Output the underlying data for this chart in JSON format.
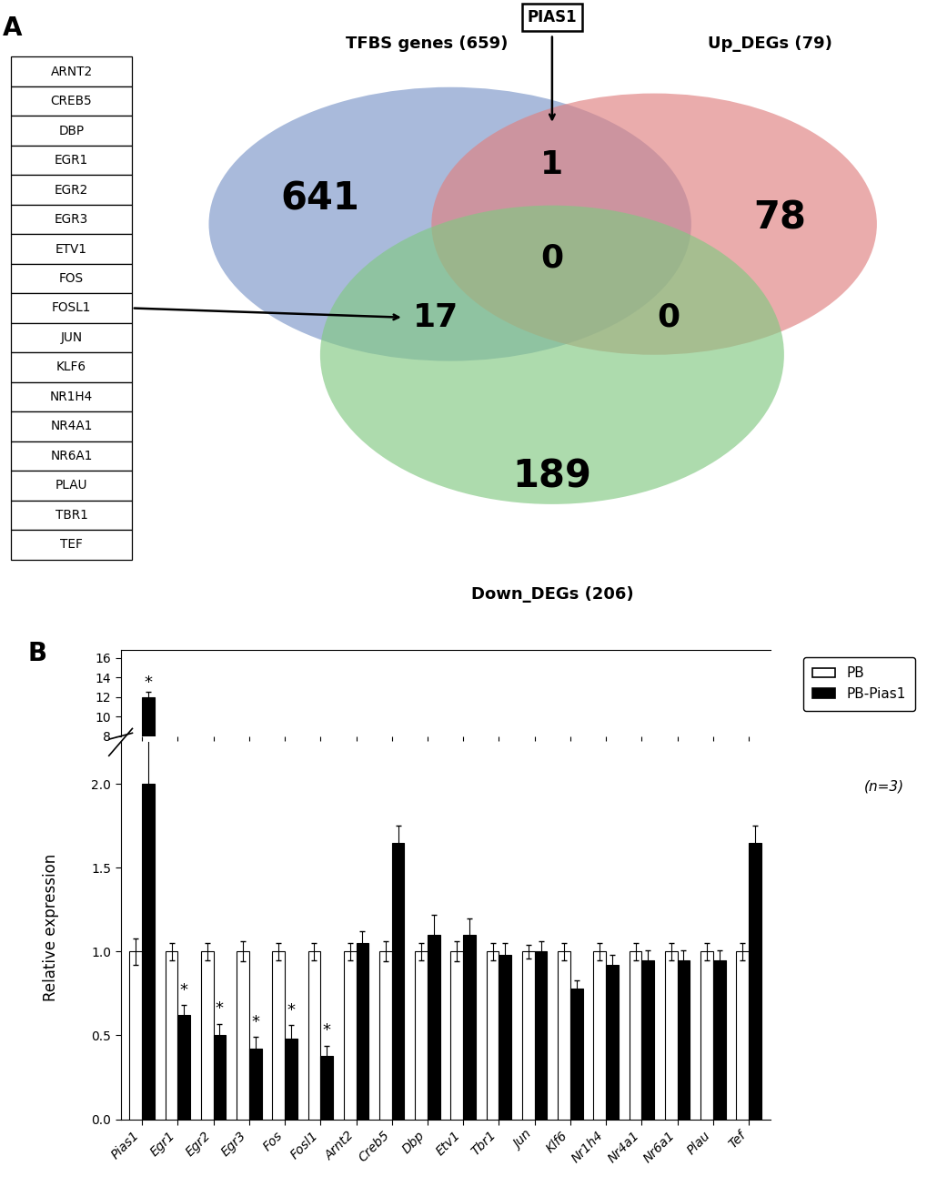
{
  "panel_a_label": "A",
  "panel_b_label": "B",
  "venn_labels": {
    "tfbs": "TFBS genes (659)",
    "up": "Up_DEGs (79)",
    "down": "Down_DEGs (206)"
  },
  "venn_numbers": {
    "tfbs_only": "641",
    "up_only": "78",
    "down_only": "189",
    "tfbs_up": "1",
    "tfbs_down": "17",
    "up_down": "0",
    "all": "0"
  },
  "pias1_label": "PIAS1",
  "gene_list": [
    "ARNT2",
    "CREB5",
    "DBP",
    "EGR1",
    "EGR2",
    "EGR3",
    "ETV1",
    "FOS",
    "FOSL1",
    "JUN",
    "KLF6",
    "NR1H4",
    "NR4A1",
    "NR6A1",
    "PLAU",
    "TBR1",
    "TEF"
  ],
  "venn_colors": {
    "tfbs": "#7b96c8",
    "up": "#e08080",
    "down": "#82c882"
  },
  "venn_alpha": 0.65,
  "bar_categories": [
    "Pias1",
    "Egr1",
    "Egr2",
    "Egr3",
    "Fos",
    "Fosl1",
    "Arnt2",
    "Creb5",
    "Dbp",
    "Etv1",
    "Tbr1",
    "Jun",
    "Klf6",
    "Nr1h4",
    "Nr4a1",
    "Nr6a1",
    "Plau",
    "Tef"
  ],
  "bar_pb": [
    1.0,
    1.0,
    1.0,
    1.0,
    1.0,
    1.0,
    1.0,
    1.0,
    1.0,
    1.0,
    1.0,
    1.0,
    1.0,
    1.0,
    1.0,
    1.0,
    1.0,
    1.0
  ],
  "bar_pb_err": [
    0.08,
    0.05,
    0.05,
    0.06,
    0.05,
    0.05,
    0.05,
    0.06,
    0.05,
    0.06,
    0.05,
    0.04,
    0.05,
    0.05,
    0.05,
    0.05,
    0.05,
    0.05
  ],
  "bar_pbpias1": [
    2.0,
    0.62,
    0.5,
    0.42,
    0.48,
    0.38,
    1.05,
    1.65,
    1.1,
    1.1,
    0.98,
    1.0,
    0.78,
    0.92,
    0.95,
    0.95,
    0.95,
    1.65
  ],
  "bar_pbpias1_err": [
    0.35,
    0.06,
    0.07,
    0.07,
    0.08,
    0.06,
    0.07,
    0.1,
    0.12,
    0.1,
    0.07,
    0.06,
    0.05,
    0.06,
    0.06,
    0.06,
    0.06,
    0.1
  ],
  "pias1_special_pbpias1": 12.0,
  "pias1_special_pbpias1_err": 0.5,
  "significant_stars": [
    0,
    1,
    2,
    3,
    4,
    5
  ],
  "ylabel_bar": "Relative expression",
  "yticks_lower": [
    0.0,
    0.5,
    1.0,
    1.5,
    2.0
  ],
  "yticks_upper": [
    8,
    10,
    12,
    14,
    16
  ],
  "legend_labels": [
    "PB",
    "PB-Pias1"
  ],
  "n_label": "(n=3)"
}
